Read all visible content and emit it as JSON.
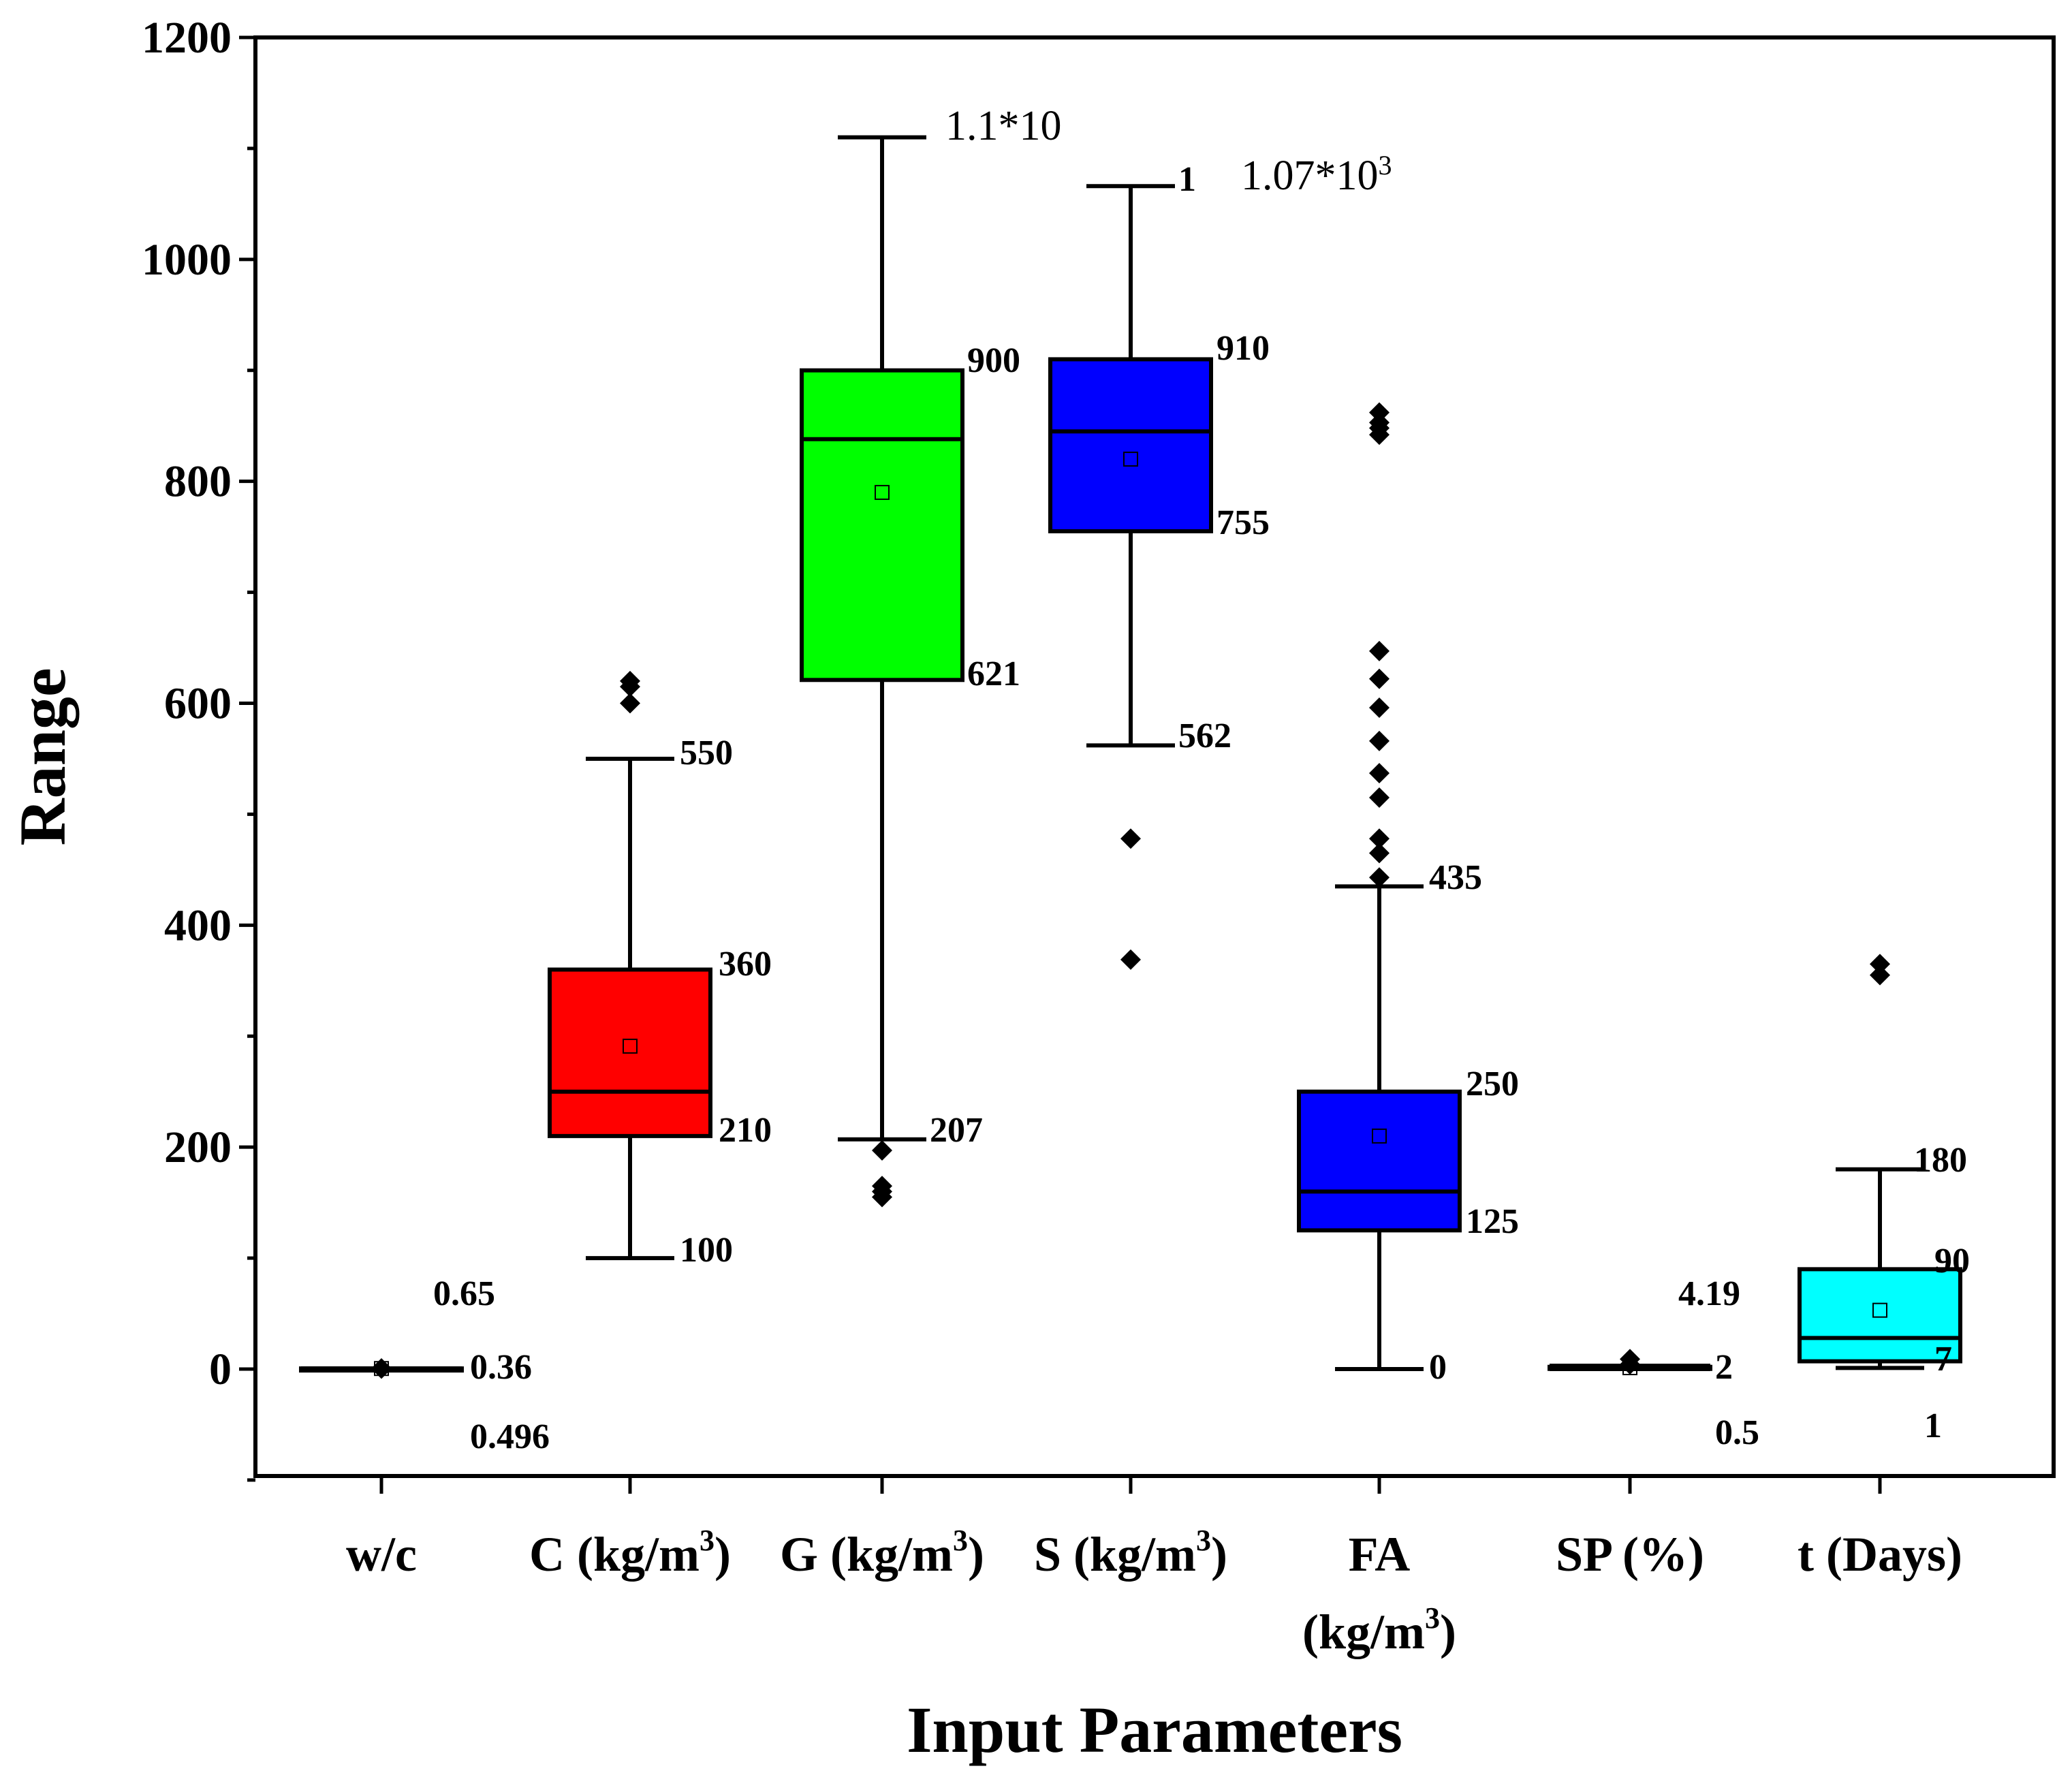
{
  "chart_data": {
    "type": "box",
    "xlabel": "Input Parameters",
    "ylabel": "Range",
    "ylim": [
      -100,
      1200
    ],
    "yticks": [
      0,
      200,
      400,
      600,
      800,
      1000,
      1200
    ],
    "series": [
      {
        "name": "w/c",
        "label_main": "w/c",
        "label_sup": "",
        "label_tail": "",
        "label_line2": "",
        "color": "#ffffff",
        "whisker_low": 0.36,
        "q1": 0.45,
        "median": 0.5,
        "q3": 0.55,
        "whisker_high": 0.65,
        "mean": 0.496,
        "outliers": [
          0.36,
          0.65
        ],
        "annotations": [
          "0.65",
          "0.36",
          "0.496"
        ]
      },
      {
        "name": "C (kg/m3)",
        "label_main": "C (kg/m",
        "label_sup": "3",
        "label_tail": ")",
        "label_line2": "",
        "color": "#ff0000",
        "whisker_low": 100,
        "q1": 210,
        "median": 250,
        "q3": 360,
        "whisker_high": 550,
        "mean": 291,
        "outliers": [
          600,
          615,
          620
        ],
        "annotations": [
          "550",
          "360",
          "210",
          "100"
        ]
      },
      {
        "name": "G (kg/m3)",
        "label_main": "G (kg/m",
        "label_sup": "3",
        "label_tail": ")",
        "label_line2": "",
        "color": "#00ff00",
        "whisker_low": 207,
        "q1": 621,
        "median": 838,
        "q3": 900,
        "whisker_high": 1110,
        "mean": 790,
        "outliers": [
          197,
          165,
          160,
          155
        ],
        "annotations": [
          "1.1*10",
          "900",
          "621",
          "207"
        ]
      },
      {
        "name": "S (kg/m3)",
        "label_main": "S (kg/m",
        "label_sup": "3",
        "label_tail": ")",
        "label_line2": "",
        "color": "#0000ff",
        "whisker_low": 562,
        "q1": 755,
        "median": 845,
        "q3": 910,
        "whisker_high": 1066,
        "mean": 820,
        "outliers": [
          478,
          369
        ],
        "annotations": [
          "1",
          "910",
          "755",
          "562"
        ]
      },
      {
        "name": "FA (kg/m3)",
        "label_main": "FA",
        "label_sup": "3",
        "label_tail": ")",
        "label_line2": "(kg/m",
        "color": "#0000ff",
        "whisker_low": 0,
        "q1": 125,
        "median": 160,
        "q3": 250,
        "whisker_high": 435,
        "mean": 210,
        "outliers": [
          443,
          465,
          478,
          515,
          537,
          566,
          596,
          622,
          647,
          842,
          848,
          853,
          862
        ],
        "annotations": [
          "435",
          "250",
          "125",
          "0"
        ]
      },
      {
        "name": "SP (%)",
        "label_main": "SP (%)",
        "label_sup": "",
        "label_tail": "",
        "label_line2": "",
        "color": "#ffffff",
        "whisker_low": 0,
        "q1": 0.5,
        "median": 1,
        "q3": 2,
        "whisker_high": 3,
        "mean": 1.2,
        "outliers": [
          4.19,
          9
        ],
        "annotations": [
          "4.19",
          "2",
          "0.5"
        ]
      },
      {
        "name": "t (Days)",
        "label_main": "t (Days)",
        "label_sup": "",
        "label_tail": "",
        "label_line2": "",
        "color": "#00ffff",
        "whisker_low": 1,
        "q1": 7,
        "median": 28,
        "q3": 90,
        "whisker_high": 180,
        "mean": 53,
        "outliers": [
          355,
          365
        ],
        "annotations": [
          "180",
          "90",
          "7",
          "1"
        ]
      }
    ],
    "extra_annotations": [
      {
        "text": "1.07*10",
        "sup": "3"
      }
    ]
  }
}
